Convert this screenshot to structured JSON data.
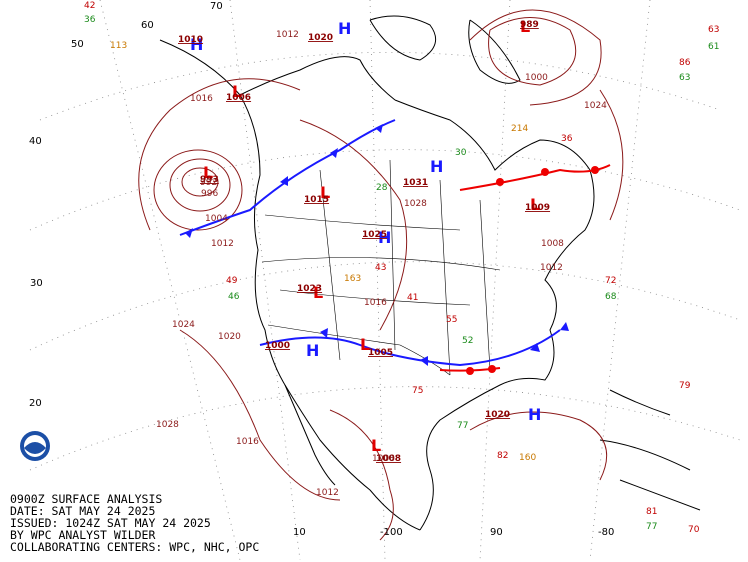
{
  "footer": [
    "0900Z SURFACE ANALYSIS",
    "DATE: SAT MAY 24 2025",
    "ISSUED: 1024Z SAT MAY 24 2025",
    "BY WPC ANALYST WILDER",
    "COLLABORATING CENTERS: WPC, NHC, OPC"
  ],
  "latitude_labels": [
    "70",
    "60",
    "50",
    "40",
    "30",
    "20",
    "10"
  ],
  "longitude_labels": [
    "-100",
    "90",
    "-80"
  ],
  "pressure_centers": [
    {
      "symbol": "H",
      "value": "1020"
    },
    {
      "symbol": "H",
      "value": "1031"
    },
    {
      "symbol": "H",
      "value": "1025"
    },
    {
      "symbol": "H",
      "value": "1020"
    },
    {
      "symbol": "H",
      "value": "1010"
    },
    {
      "symbol": "H",
      "value": "1000"
    },
    {
      "symbol": "L",
      "value": "993"
    },
    {
      "symbol": "L",
      "value": "989"
    },
    {
      "symbol": "L",
      "value": "1006"
    },
    {
      "symbol": "L",
      "value": "1023"
    },
    {
      "symbol": "L",
      "value": "1008"
    },
    {
      "symbol": "L",
      "value": "1005"
    },
    {
      "symbol": "L",
      "value": "1009"
    },
    {
      "symbol": "L",
      "value": "1015"
    }
  ],
  "isobar_labels": [
    "1024",
    "1024",
    "1020",
    "1016",
    "1028",
    "1012",
    "1012",
    "1012",
    "1008",
    "1004",
    "996",
    "1016",
    "1028",
    "1008",
    "1012",
    "1016",
    "992",
    "1000"
  ],
  "station_values": [
    {
      "value": "42",
      "kind": "temperature"
    },
    {
      "value": "36",
      "kind": "dewpoint"
    },
    {
      "value": "113",
      "kind": "pressure"
    },
    {
      "value": "49",
      "kind": "temperature"
    },
    {
      "value": "46",
      "kind": "dewpoint"
    },
    {
      "value": "41",
      "kind": "temperature"
    },
    {
      "value": "43",
      "kind": "temperature"
    },
    {
      "value": "28",
      "kind": "dewpoint"
    },
    {
      "value": "55",
      "kind": "temperature"
    },
    {
      "value": "52",
      "kind": "dewpoint"
    },
    {
      "value": "75",
      "kind": "temperature"
    },
    {
      "value": "77",
      "kind": "dewpoint"
    },
    {
      "value": "82",
      "kind": "temperature"
    },
    {
      "value": "79",
      "kind": "temperature"
    },
    {
      "value": "72",
      "kind": "temperature"
    },
    {
      "value": "68",
      "kind": "dewpoint"
    },
    {
      "value": "63",
      "kind": "temperature"
    },
    {
      "value": "61",
      "kind": "dewpoint"
    },
    {
      "value": "86",
      "kind": "temperature"
    },
    {
      "value": "63",
      "kind": "dewpoint"
    },
    {
      "value": "81",
      "kind": "temperature"
    },
    {
      "value": "77",
      "kind": "dewpoint"
    },
    {
      "value": "70",
      "kind": "temperature"
    },
    {
      "value": "36",
      "kind": "temperature"
    },
    {
      "value": "30",
      "kind": "dewpoint"
    },
    {
      "value": "160",
      "kind": "pressure"
    },
    {
      "value": "214",
      "kind": "pressure"
    },
    {
      "value": "163",
      "kind": "pressure"
    }
  ]
}
